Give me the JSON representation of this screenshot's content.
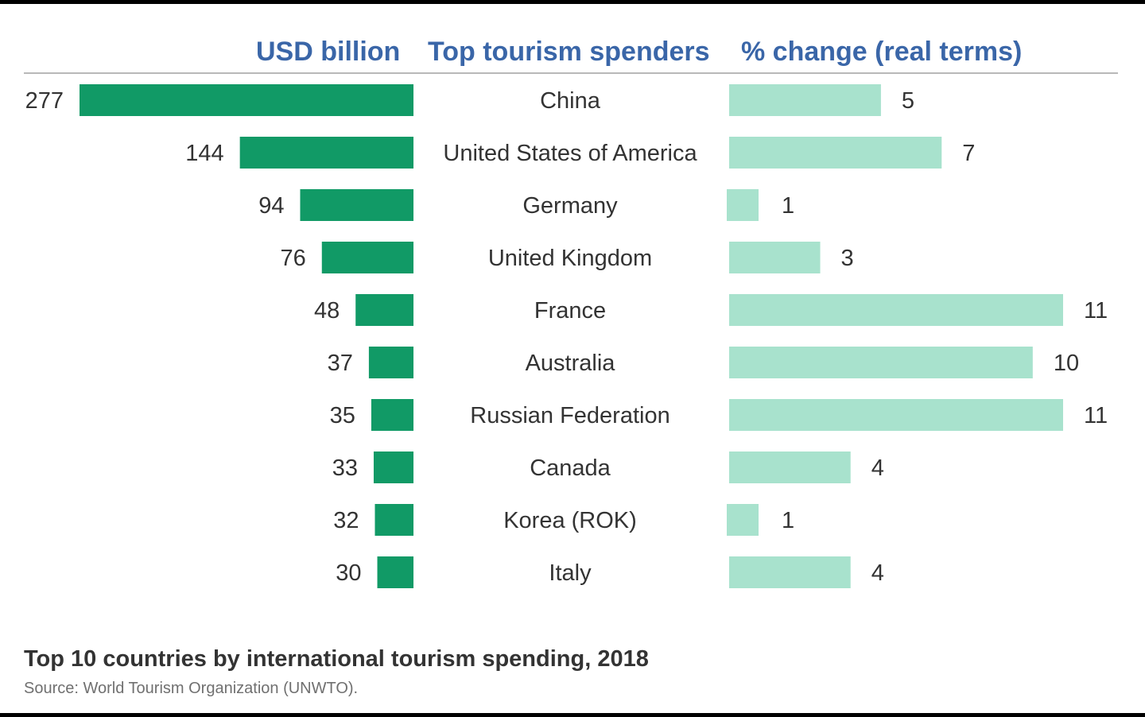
{
  "chart_data": {
    "type": "bar",
    "title": "Top 10 countries by international tourism spending, 2018",
    "source": "Source: World Tourism Organization (UNWTO).",
    "column_headers": {
      "spending": "USD billion",
      "countries": "Top tourism spenders",
      "change": "% change (real terms)"
    },
    "categories": [
      "China",
      "United States of America",
      "Germany",
      "United Kingdom",
      "France",
      "Australia",
      "Russian Federation",
      "Canada",
      "Korea (ROK)",
      "Italy"
    ],
    "series": [
      {
        "name": "USD billion",
        "values": [
          277,
          144,
          94,
          76,
          48,
          37,
          35,
          33,
          32,
          30
        ],
        "color": "#119a66"
      },
      {
        "name": "% change (real terms)",
        "values": [
          5,
          7,
          1,
          3,
          11,
          10,
          11,
          4,
          1,
          4
        ],
        "color": "#a8e2cd"
      }
    ]
  }
}
